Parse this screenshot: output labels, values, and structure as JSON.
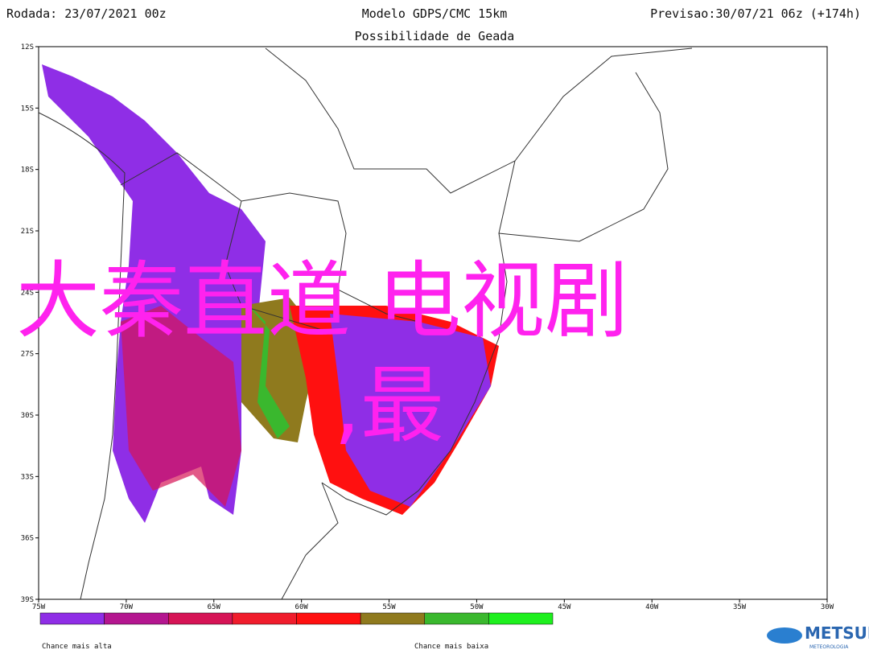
{
  "header": {
    "left": "Rodada: 23/07/2021 00z",
    "center": "Modelo GDPS/CMC 15km",
    "right": "Previsao:30/07/21 06z (+174h)"
  },
  "subtitle": "Possibilidade de Geada",
  "lat_labels": [
    "12S",
    "15S",
    "18S",
    "21S",
    "24S",
    "27S",
    "30S",
    "33S",
    "36S",
    "39S"
  ],
  "lon_labels": [
    "75W",
    "70W",
    "65W",
    "60W",
    "55W",
    "50W",
    "45W",
    "40W",
    "35W",
    "30W"
  ],
  "legend": {
    "colors": [
      "#8f2ee6",
      "#b4168f",
      "#d61456",
      "#f01c2c",
      "#ff1010",
      "#8f7a1e",
      "#3ab82e",
      "#1ef01e"
    ],
    "low_label": "Chance mais alta",
    "high_label": "Chance mais baixa"
  },
  "overlay": {
    "line1": "大秦直道 电视剧",
    "line2": ",最"
  },
  "logo": {
    "name": "METSUL",
    "tagline": "METEOROLOGIA"
  }
}
